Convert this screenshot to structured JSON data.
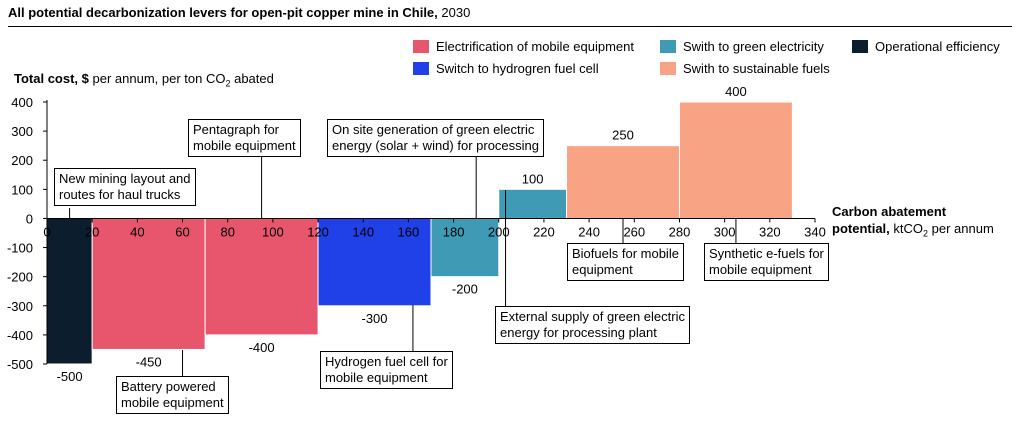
{
  "title": {
    "bold": "All potential decarbonization levers for open-pit copper mine in Chile,",
    "normal": " 2030"
  },
  "colors": {
    "electrification": "#e8566e",
    "hydrogen": "#2040e8",
    "green_electricity": "#3f9ab6",
    "sustainable_fuels": "#f7a384",
    "operational_efficiency": "#0c1e2e"
  },
  "legend": [
    {
      "label": "Electrification of mobile equipment",
      "color": "#e8566e"
    },
    {
      "label": "Swith to green electricity",
      "color": "#3f9ab6"
    },
    {
      "label": "Operational efficiency",
      "color": "#0c1e2e"
    },
    {
      "label": "Switch to hydrogren fuel cell",
      "color": "#2040e8"
    },
    {
      "label": "Swith to sustainable fuels",
      "color": "#f7a384"
    }
  ],
  "axis": {
    "y_bold": "Total cost, $",
    "y_normal": " per annum, per ton CO",
    "y_sub": "2",
    "y_tail": " abated",
    "x_bold_1": "Carbon abatement",
    "x_bold_2": "potential,",
    "x_normal": " ktCO",
    "x_sub": "2",
    "x_tail": " per annum"
  },
  "annotations": {
    "mining_layout": [
      "New mining layout and",
      "routes for haul trucks"
    ],
    "pentagraph": [
      "Pentagraph for",
      "mobile equipment"
    ],
    "on_site": [
      "On site generation of green electric",
      "energy (solar + wind) for processing"
    ],
    "battery": [
      "Battery powered",
      "mobile equipment"
    ],
    "hydrogen": [
      "Hydrogen fuel cell for",
      "mobile equipment"
    ],
    "external": [
      "External supply of green electric",
      "energy for processing plant"
    ],
    "biofuels": [
      "Biofuels for mobile",
      "equipment"
    ],
    "efuels": [
      "Synthetic e-fuels for",
      "mobile equipment"
    ]
  },
  "chart_data": {
    "type": "bar",
    "subtype": "marginal-abatement-cost-curve",
    "xlim": [
      0,
      340
    ],
    "ylim": [
      -500,
      400
    ],
    "x_ticks": [
      0,
      20,
      40,
      60,
      80,
      100,
      120,
      140,
      160,
      180,
      200,
      220,
      240,
      260,
      280,
      300,
      320,
      340
    ],
    "y_ticks": [
      400,
      300,
      200,
      100,
      0,
      -100,
      -200,
      -300,
      -400,
      -500
    ],
    "bars": [
      {
        "lever": "New mining layout and routes for haul trucks",
        "category": "Operational efficiency",
        "x_start": 0,
        "x_end": 20,
        "value": -500,
        "color": "#0c1e2e"
      },
      {
        "lever": "Battery powered mobile equipment",
        "category": "Electrification of mobile equipment",
        "x_start": 20,
        "x_end": 70,
        "value": -450,
        "color": "#e8566e"
      },
      {
        "lever": "Pentagraph for mobile equipment",
        "category": "Electrification of mobile equipment",
        "x_start": 70,
        "x_end": 120,
        "value": -400,
        "color": "#e8566e"
      },
      {
        "lever": "Hydrogen fuel cell for mobile equipment",
        "category": "Switch to hydrogren fuel cell",
        "x_start": 120,
        "x_end": 170,
        "value": -300,
        "color": "#2040e8"
      },
      {
        "lever": "On site generation of green electric energy (solar + wind) for processing",
        "category": "Swith to green electricity",
        "x_start": 170,
        "x_end": 200,
        "value": -200,
        "color": "#3f9ab6"
      },
      {
        "lever": "External supply of green electric energy for processing plant",
        "category": "Swith to green electricity",
        "x_start": 200,
        "x_end": 230,
        "value": 100,
        "color": "#3f9ab6"
      },
      {
        "lever": "Biofuels for mobile equipment",
        "category": "Swith to sustainable fuels",
        "x_start": 230,
        "x_end": 280,
        "value": 250,
        "color": "#f7a384"
      },
      {
        "lever": "Synthetic e-fuels for mobile equipment",
        "category": "Swith to sustainable fuels",
        "x_start": 280,
        "x_end": 330,
        "value": 400,
        "color": "#f7a384"
      }
    ],
    "value_labels": [
      "-500",
      "-450",
      "-400",
      "-300",
      "-200",
      "100",
      "250",
      "400"
    ]
  }
}
